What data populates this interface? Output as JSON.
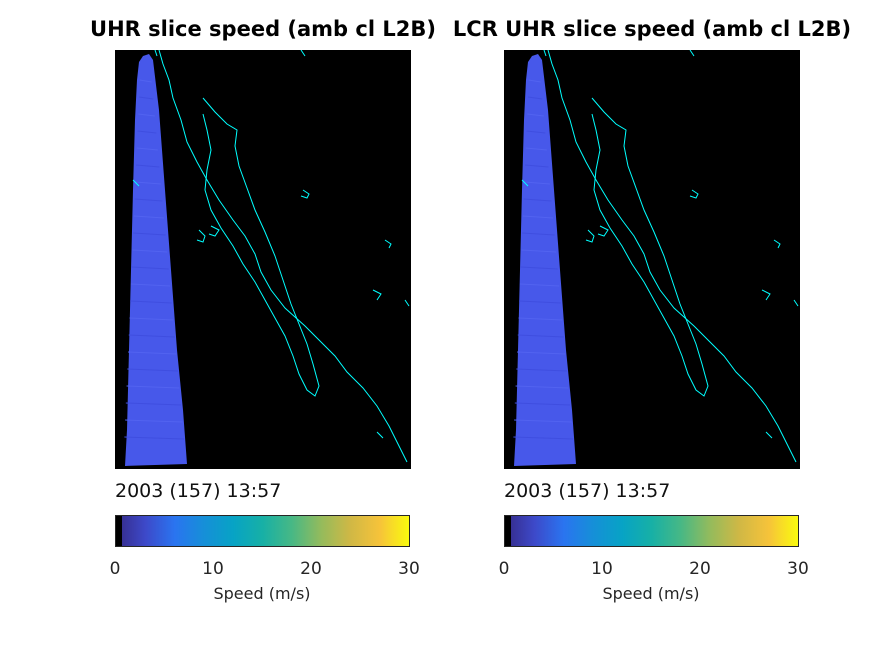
{
  "figure": {
    "panels": [
      {
        "title": "UHR slice speed (amb cl L2B)",
        "timestamp": "2003 (157) 13:57",
        "colorbar_label": "Speed (m/s)",
        "colorbar_ticks": [
          "0",
          "10",
          "20",
          "30"
        ]
      },
      {
        "title": "LCR UHR slice speed (amb cl L2B)",
        "timestamp": "2003 (157) 13:57",
        "colorbar_label": "Speed (m/s)",
        "colorbar_ticks": [
          "0",
          "10",
          "20",
          "30"
        ]
      }
    ],
    "colors": {
      "background": "#000000",
      "coastline": "#00ffff",
      "swath": "#4758ea"
    }
  },
  "chart_data": [
    {
      "type": "heatmap",
      "title": "UHR slice speed (amb cl L2B)",
      "variable": "Speed (m/s)",
      "colorbar_range": [
        0,
        30
      ],
      "colorbar_ticks": [
        0,
        10,
        20,
        30
      ],
      "colormap": "parula",
      "swath_dominant_speed_approx": 5,
      "timestamp": "2003 (157) 13:57"
    },
    {
      "type": "heatmap",
      "title": "LCR UHR slice speed (amb cl L2B)",
      "variable": "Speed (m/s)",
      "colorbar_range": [
        0,
        30
      ],
      "colorbar_ticks": [
        0,
        10,
        20,
        30
      ],
      "colormap": "parula",
      "swath_dominant_speed_approx": 5,
      "timestamp": "2003 (157) 13:57"
    }
  ]
}
